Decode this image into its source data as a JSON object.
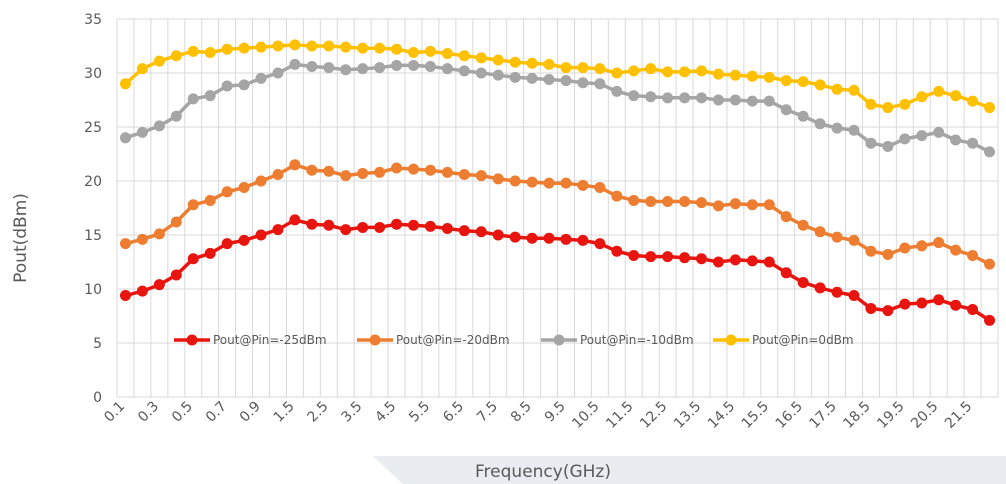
{
  "chart_data": {
    "type": "line",
    "title": "",
    "xlabel": "Frequency(GHz)",
    "ylabel": "Pout(dBm)",
    "ylim": [
      0,
      35
    ],
    "yticks": [
      0,
      5,
      10,
      15,
      20,
      25,
      30,
      35
    ],
    "grid": true,
    "legend_position": "bottom-inside",
    "categories": [
      "0.1",
      "0.2",
      "0.3",
      "0.4",
      "0.5",
      "0.6",
      "0.7",
      "0.8",
      "0.9",
      "1",
      "1.5",
      "2",
      "2.5",
      "3",
      "3.5",
      "4",
      "4.5",
      "5",
      "5.5",
      "6",
      "6.5",
      "7",
      "7.5",
      "8",
      "8.5",
      "9",
      "9.5",
      "10",
      "10.5",
      "11",
      "11.5",
      "12",
      "12.5",
      "13",
      "13.5",
      "14",
      "14.5",
      "15",
      "15.5",
      "16",
      "16.5",
      "17",
      "17.5",
      "18",
      "18.5",
      "19",
      "19.5",
      "20",
      "20.5",
      "21",
      "21.5",
      "22"
    ],
    "tick_labels": [
      "0.1",
      "0.3",
      "0.5",
      "0.7",
      "0.9",
      "1.5",
      "2.5",
      "3.5",
      "4.5",
      "5.5",
      "6.5",
      "7.5",
      "8.5",
      "9.5",
      "10.5",
      "11.5",
      "12.5",
      "13.5",
      "14.5",
      "15.5",
      "16.5",
      "17.5",
      "18.5",
      "19.5",
      "20.5",
      "21.5"
    ],
    "series": [
      {
        "name": "Pout@Pin=-25dBm",
        "color": "#e8140f",
        "values": [
          9.4,
          9.8,
          10.4,
          11.3,
          12.8,
          13.3,
          14.2,
          14.5,
          15.0,
          15.5,
          16.4,
          16.0,
          15.9,
          15.5,
          15.7,
          15.7,
          16.0,
          15.9,
          15.8,
          15.6,
          15.4,
          15.3,
          15.0,
          14.8,
          14.7,
          14.7,
          14.6,
          14.5,
          14.2,
          13.5,
          13.1,
          13.0,
          13.0,
          12.9,
          12.8,
          12.5,
          12.7,
          12.6,
          12.5,
          11.5,
          10.6,
          10.1,
          9.7,
          9.4,
          8.2,
          8.0,
          8.6,
          8.7,
          9.0,
          8.5,
          8.1,
          7.1
        ]
      },
      {
        "name": "Pout@Pin=-20dBm",
        "color": "#ed7d31",
        "values": [
          14.2,
          14.6,
          15.1,
          16.2,
          17.8,
          18.2,
          19.0,
          19.4,
          20.0,
          20.6,
          21.5,
          21.0,
          20.9,
          20.5,
          20.7,
          20.8,
          21.2,
          21.1,
          21.0,
          20.8,
          20.6,
          20.5,
          20.2,
          20.0,
          19.9,
          19.8,
          19.8,
          19.6,
          19.4,
          18.6,
          18.2,
          18.1,
          18.1,
          18.1,
          18.0,
          17.7,
          17.9,
          17.8,
          17.8,
          16.7,
          15.9,
          15.3,
          14.8,
          14.5,
          13.5,
          13.2,
          13.8,
          14.0,
          14.3,
          13.6,
          13.1,
          12.3
        ]
      },
      {
        "name": "Pout@Pin=-10dBm",
        "color": "#a5a5a5",
        "values": [
          24.0,
          24.5,
          25.1,
          26.0,
          27.6,
          27.9,
          28.8,
          28.9,
          29.5,
          30.0,
          30.8,
          30.6,
          30.5,
          30.3,
          30.4,
          30.5,
          30.7,
          30.7,
          30.6,
          30.4,
          30.2,
          30.0,
          29.8,
          29.6,
          29.5,
          29.4,
          29.3,
          29.1,
          29.0,
          28.3,
          27.9,
          27.8,
          27.7,
          27.7,
          27.7,
          27.5,
          27.5,
          27.4,
          27.4,
          26.6,
          26.0,
          25.3,
          24.9,
          24.7,
          23.5,
          23.2,
          23.9,
          24.2,
          24.5,
          23.8,
          23.5,
          22.7
        ]
      },
      {
        "name": "Pout@Pin=0dBm",
        "color": "#ffc000",
        "values": [
          29.0,
          30.4,
          31.1,
          31.6,
          32.0,
          31.9,
          32.2,
          32.3,
          32.4,
          32.5,
          32.6,
          32.5,
          32.5,
          32.4,
          32.3,
          32.3,
          32.2,
          31.9,
          32.0,
          31.8,
          31.6,
          31.4,
          31.2,
          31.0,
          30.9,
          30.8,
          30.5,
          30.5,
          30.4,
          30.0,
          30.2,
          30.4,
          30.1,
          30.1,
          30.2,
          29.9,
          29.8,
          29.7,
          29.6,
          29.3,
          29.2,
          28.9,
          28.5,
          28.4,
          27.1,
          26.8,
          27.1,
          27.8,
          28.3,
          27.9,
          27.4,
          26.8
        ]
      }
    ]
  }
}
